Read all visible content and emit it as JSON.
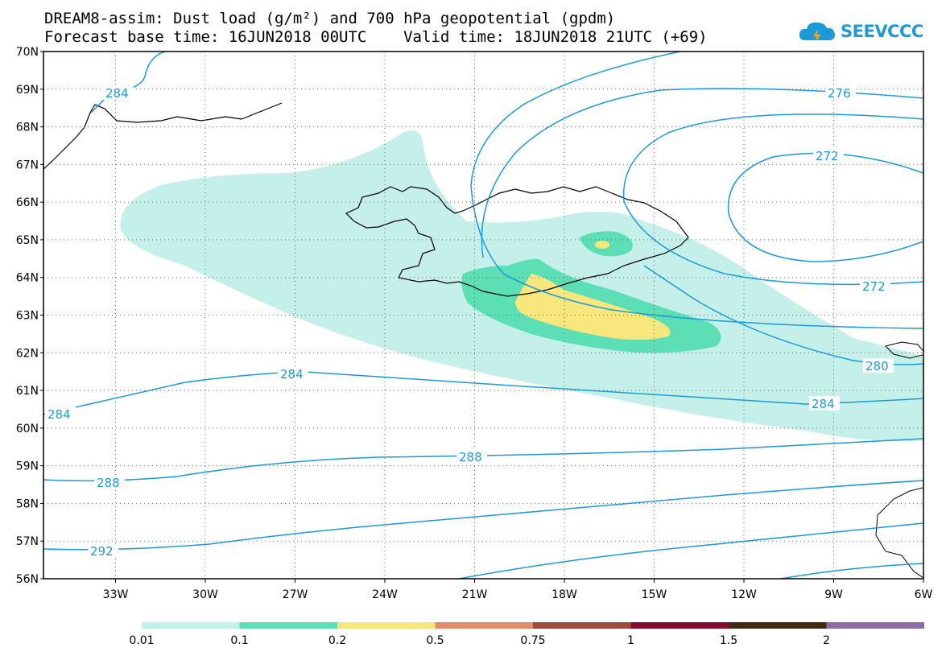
{
  "title": {
    "line1": "DREAM8-assim: Dust load (g/m²) and 700 hPa geopotential (gpdm)",
    "line2": "Forecast base time: 16JUN2018 00UTC    Valid time: 18JUN2018 21UTC (+69)"
  },
  "logo": {
    "text": "SEEVCCC"
  },
  "colors": {
    "contour": "#1a9ad9",
    "c001": "#c5f0ea",
    "c01": "#5ddfb5",
    "c02": "#f7e77d",
    "c05": "#e08c6a",
    "c075": "#a04a3f",
    "c1": "#850d2e",
    "c15": "#3c2a12",
    "c2": "#8c6da3"
  },
  "chart_data": {
    "type": "map",
    "latitude_labels": [
      "70N",
      "69N",
      "68N",
      "67N",
      "66N",
      "65N",
      "64N",
      "63N",
      "62N",
      "61N",
      "60N",
      "59N",
      "58N",
      "57N",
      "56N"
    ],
    "longitude_labels": [
      "33W",
      "30W",
      "27W",
      "24W",
      "21W",
      "18W",
      "15W",
      "12W",
      "9W",
      "6W"
    ],
    "contour_labels": [
      "284",
      "276",
      "272",
      "272",
      "280",
      "284",
      "284",
      "284",
      "288",
      "288",
      "292"
    ],
    "colorbar": {
      "labels": [
        "0.01",
        "0.1",
        "0.2",
        "0.5",
        "0.75",
        "1",
        "1.5",
        "2"
      ],
      "colors": [
        "#c5f0ea",
        "#5ddfb5",
        "#f7e77d",
        "#e08c6a",
        "#a04a3f",
        "#850d2e",
        "#3c2a12",
        "#8c6da3"
      ]
    }
  }
}
